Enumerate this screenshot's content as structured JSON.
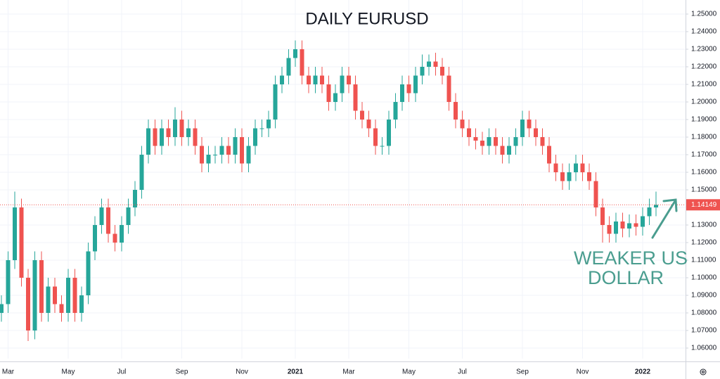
{
  "chart_data": {
    "type": "candlestick",
    "title": "DAILY EURUSD",
    "annotation": [
      "WEAKER US",
      "DOLLAR"
    ],
    "categories": [
      null,
      null,
      null,
      null,
      null,
      null,
      null,
      null,
      null,
      null,
      null,
      null,
      null,
      null,
      null,
      null,
      null,
      null,
      null,
      null,
      null,
      null,
      null,
      null,
      null,
      null,
      null,
      null,
      null,
      null,
      null,
      null,
      null,
      null,
      null,
      null,
      null,
      null,
      null,
      null,
      null,
      null,
      null,
      null,
      null,
      null,
      null,
      null,
      null,
      null,
      null,
      null,
      null,
      null,
      null,
      null,
      null,
      null,
      null,
      null,
      null,
      null,
      null,
      null,
      null,
      null,
      null,
      null,
      null,
      null,
      null,
      null,
      null,
      null,
      null,
      null,
      null,
      null,
      null,
      null,
      null,
      null,
      null,
      null,
      null,
      null,
      null,
      null,
      null,
      null,
      null,
      null,
      null,
      null,
      null,
      null,
      null,
      null,
      null
    ],
    "open": [
      1.08,
      1.085,
      1.11,
      1.14,
      1.1,
      1.07,
      1.11,
      1.08,
      1.095,
      1.085,
      1.08,
      1.1,
      1.08,
      1.09,
      1.115,
      1.13,
      1.14,
      1.125,
      1.12,
      1.13,
      1.14,
      1.15,
      1.17,
      1.185,
      1.175,
      1.185,
      1.18,
      1.19,
      1.18,
      1.185,
      1.175,
      1.165,
      1.17,
      1.17,
      1.175,
      1.17,
      1.18,
      1.165,
      1.175,
      1.185,
      1.185,
      1.19,
      1.21,
      1.215,
      1.225,
      1.23,
      1.215,
      1.21,
      1.215,
      1.21,
      1.2,
      1.205,
      1.215,
      1.21,
      1.195,
      1.19,
      1.185,
      1.175,
      1.175,
      1.19,
      1.2,
      1.21,
      1.205,
      1.215,
      1.22,
      1.223,
      1.22,
      1.215,
      1.2,
      1.19,
      1.185,
      1.18,
      1.178,
      1.175,
      1.18,
      1.175,
      1.17,
      1.175,
      1.18,
      1.19,
      1.185,
      1.18,
      1.175,
      1.165,
      1.16,
      1.155,
      1.16,
      1.165,
      1.16,
      1.155,
      1.14,
      1.13,
      1.125,
      1.132,
      1.128,
      1.131,
      1.129,
      1.135,
      1.14
    ],
    "high": [
      1.09,
      1.115,
      1.149,
      1.145,
      1.105,
      1.115,
      1.115,
      1.1,
      1.1,
      1.09,
      1.105,
      1.105,
      1.095,
      1.12,
      1.135,
      1.145,
      1.145,
      1.13,
      1.135,
      1.145,
      1.155,
      1.175,
      1.19,
      1.19,
      1.19,
      1.19,
      1.197,
      1.195,
      1.19,
      1.19,
      1.18,
      1.175,
      1.175,
      1.18,
      1.18,
      1.185,
      1.185,
      1.18,
      1.19,
      1.19,
      1.195,
      1.215,
      1.22,
      1.23,
      1.235,
      1.235,
      1.22,
      1.22,
      1.22,
      1.215,
      1.21,
      1.22,
      1.22,
      1.215,
      1.2,
      1.195,
      1.19,
      1.18,
      1.195,
      1.205,
      1.215,
      1.215,
      1.22,
      1.227,
      1.227,
      1.228,
      1.225,
      1.22,
      1.205,
      1.195,
      1.19,
      1.185,
      1.183,
      1.185,
      1.185,
      1.18,
      1.18,
      1.185,
      1.195,
      1.195,
      1.19,
      1.185,
      1.18,
      1.17,
      1.165,
      1.165,
      1.17,
      1.17,
      1.165,
      1.16,
      1.145,
      1.135,
      1.137,
      1.137,
      1.136,
      1.136,
      1.14,
      1.145,
      1.149
    ],
    "low": [
      1.075,
      1.08,
      1.105,
      1.095,
      1.064,
      1.065,
      1.075,
      1.075,
      1.08,
      1.075,
      1.075,
      1.075,
      1.075,
      1.085,
      1.11,
      1.125,
      1.12,
      1.115,
      1.115,
      1.125,
      1.135,
      1.145,
      1.165,
      1.17,
      1.17,
      1.175,
      1.175,
      1.175,
      1.175,
      1.17,
      1.16,
      1.16,
      1.165,
      1.165,
      1.165,
      1.165,
      1.16,
      1.16,
      1.17,
      1.18,
      1.18,
      1.185,
      1.205,
      1.21,
      1.22,
      1.21,
      1.205,
      1.205,
      1.205,
      1.195,
      1.195,
      1.2,
      1.205,
      1.19,
      1.185,
      1.18,
      1.17,
      1.17,
      1.17,
      1.185,
      1.195,
      1.2,
      1.2,
      1.21,
      1.215,
      1.215,
      1.21,
      1.195,
      1.185,
      1.18,
      1.175,
      1.173,
      1.17,
      1.17,
      1.17,
      1.165,
      1.165,
      1.17,
      1.175,
      1.18,
      1.175,
      1.17,
      1.16,
      1.155,
      1.15,
      1.15,
      1.155,
      1.155,
      1.15,
      1.135,
      1.12,
      1.12,
      1.12,
      1.123,
      1.123,
      1.124,
      1.124,
      1.13,
      1.135
    ],
    "close": [
      1.085,
      1.11,
      1.14,
      1.1,
      1.07,
      1.11,
      1.08,
      1.095,
      1.085,
      1.08,
      1.1,
      1.08,
      1.09,
      1.115,
      1.13,
      1.14,
      1.125,
      1.12,
      1.13,
      1.14,
      1.15,
      1.17,
      1.185,
      1.175,
      1.185,
      1.18,
      1.19,
      1.18,
      1.185,
      1.175,
      1.165,
      1.17,
      1.17,
      1.175,
      1.17,
      1.18,
      1.165,
      1.175,
      1.185,
      1.185,
      1.19,
      1.21,
      1.215,
      1.225,
      1.23,
      1.215,
      1.21,
      1.215,
      1.21,
      1.2,
      1.205,
      1.215,
      1.21,
      1.195,
      1.19,
      1.185,
      1.175,
      1.175,
      1.19,
      1.2,
      1.21,
      1.205,
      1.215,
      1.22,
      1.223,
      1.22,
      1.215,
      1.2,
      1.19,
      1.185,
      1.18,
      1.178,
      1.175,
      1.18,
      1.175,
      1.17,
      1.175,
      1.18,
      1.19,
      1.185,
      1.18,
      1.175,
      1.165,
      1.16,
      1.155,
      1.16,
      1.165,
      1.16,
      1.155,
      1.14,
      1.13,
      1.125,
      1.132,
      1.128,
      1.131,
      1.129,
      1.135,
      1.14,
      1.1415
    ],
    "up_color": "#26a69a",
    "down_color": "#ef5350",
    "last_price": 1.14149,
    "xticks": [
      {
        "value": 1,
        "label": "Mar"
      },
      {
        "value": 10,
        "label": "May"
      },
      {
        "value": 18,
        "label": "Jul"
      },
      {
        "value": 27,
        "label": "Sep"
      },
      {
        "value": 36,
        "label": "Nov"
      },
      {
        "value": 44,
        "label": "2021"
      },
      {
        "value": 52,
        "label": "Mar"
      },
      {
        "value": 61,
        "label": "May"
      },
      {
        "value": 69,
        "label": "Jul"
      },
      {
        "value": 78,
        "label": "Sep"
      },
      {
        "value": 87,
        "label": "Nov"
      },
      {
        "value": 96,
        "label": "2022"
      }
    ],
    "ylim": [
      1.054,
      1.258
    ],
    "yticks": [
      {
        "value": 1.06,
        "label": "1.06000"
      },
      {
        "value": 1.07,
        "label": "1.07000"
      },
      {
        "value": 1.08,
        "label": "1.08000"
      },
      {
        "value": 1.09,
        "label": "1.09000"
      },
      {
        "value": 1.1,
        "label": "1.10000"
      },
      {
        "value": 1.11,
        "label": "1.11000"
      },
      {
        "value": 1.12,
        "label": "1.12000"
      },
      {
        "value": 1.13,
        "label": "1.13000"
      },
      {
        "value": 1.14,
        "label": "1.14000"
      },
      {
        "value": 1.15,
        "label": "1.15000"
      },
      {
        "value": 1.16,
        "label": "1.16000"
      },
      {
        "value": 1.17,
        "label": "1.17000"
      },
      {
        "value": 1.18,
        "label": "1.18000"
      },
      {
        "value": 1.19,
        "label": "1.19000"
      },
      {
        "value": 1.2,
        "label": "1.20000"
      },
      {
        "value": 1.21,
        "label": "1.21000"
      },
      {
        "value": 1.22,
        "label": "1.22000"
      },
      {
        "value": 1.23,
        "label": "1.23000"
      },
      {
        "value": 1.24,
        "label": "1.24000"
      },
      {
        "value": 1.25,
        "label": "1.25000"
      }
    ],
    "grid": true
  }
}
